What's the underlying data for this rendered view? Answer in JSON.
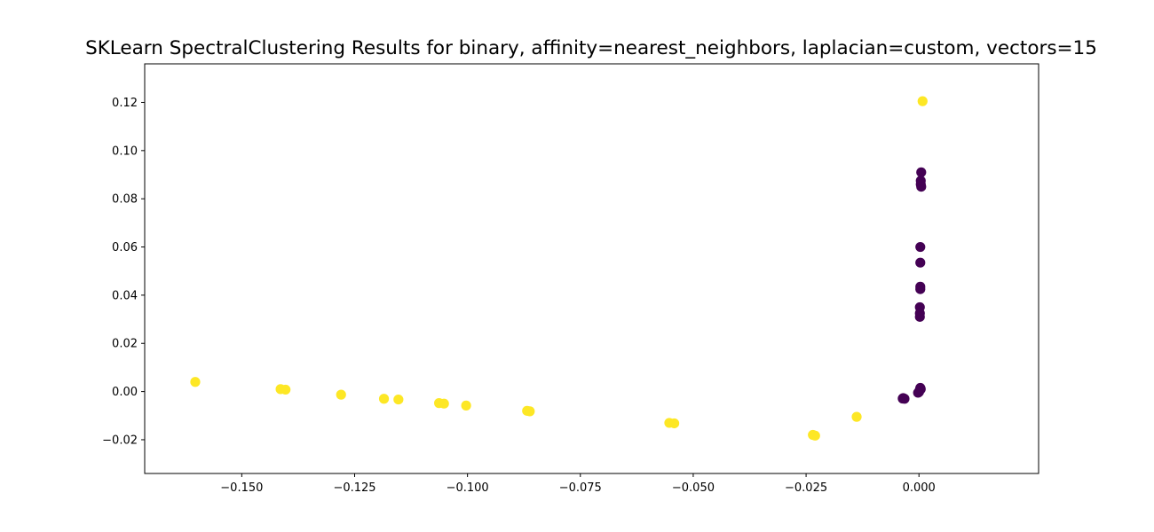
{
  "chart_data": {
    "type": "scatter",
    "title": "SKLearn SpectralClustering Results for binary, affinity=nearest_neighbors, laplacian=custom, vectors=15",
    "xlabel": "",
    "ylabel": "",
    "xlim": [
      -0.1715,
      0.0265
    ],
    "ylim": [
      -0.034,
      0.136
    ],
    "xticks": [
      -0.15,
      -0.125,
      -0.1,
      -0.075,
      -0.05,
      -0.025,
      0.0
    ],
    "xtick_labels": [
      "−0.150",
      "−0.125",
      "−0.100",
      "−0.075",
      "−0.050",
      "−0.025",
      "0.000"
    ],
    "yticks": [
      -0.02,
      0.0,
      0.02,
      0.04,
      0.06,
      0.08,
      0.1,
      0.12
    ],
    "ytick_labels": [
      "−0.02",
      "0.00",
      "0.02",
      "0.04",
      "0.06",
      "0.08",
      "0.10",
      "0.12"
    ],
    "grid": false,
    "colors": {
      "cluster0": "#440154",
      "cluster1": "#fde725"
    },
    "series": [
      {
        "color": "#fde725",
        "points": [
          [
            0.0008,
            0.1205
          ],
          [
            -0.1603,
            0.004
          ],
          [
            -0.1414,
            0.001
          ],
          [
            -0.1403,
            0.0008
          ],
          [
            -0.128,
            -0.0013
          ],
          [
            -0.1185,
            -0.003
          ],
          [
            -0.1153,
            -0.0033
          ],
          [
            -0.1063,
            -0.0048
          ],
          [
            -0.1052,
            -0.005
          ],
          [
            -0.1003,
            -0.0058
          ],
          [
            -0.0868,
            -0.008
          ],
          [
            -0.0862,
            -0.0082
          ],
          [
            -0.0553,
            -0.013
          ],
          [
            -0.0542,
            -0.0132
          ],
          [
            -0.0235,
            -0.018
          ],
          [
            -0.023,
            -0.0183
          ],
          [
            -0.0138,
            -0.0105
          ]
        ]
      },
      {
        "color": "#440154",
        "points": [
          [
            0.0005,
            0.091
          ],
          [
            0.0004,
            0.0875
          ],
          [
            0.0004,
            0.086
          ],
          [
            0.0005,
            0.085
          ],
          [
            0.0003,
            0.06
          ],
          [
            0.0003,
            0.0535
          ],
          [
            0.0003,
            0.0435
          ],
          [
            0.0003,
            0.0425
          ],
          [
            0.0002,
            0.035
          ],
          [
            0.0002,
            0.0325
          ],
          [
            0.0002,
            0.031
          ],
          [
            0.0003,
            0.0015
          ],
          [
            0.0002,
            0.0008
          ],
          [
            0.0001,
            0.0002
          ],
          [
            0.0,
            -0.0002
          ],
          [
            -0.0002,
            -0.0005
          ],
          [
            0.0004,
            0.001
          ],
          [
            -0.0035,
            -0.0027
          ],
          [
            -0.0032,
            -0.003
          ],
          [
            -0.0036,
            -0.0029
          ]
        ]
      }
    ]
  }
}
